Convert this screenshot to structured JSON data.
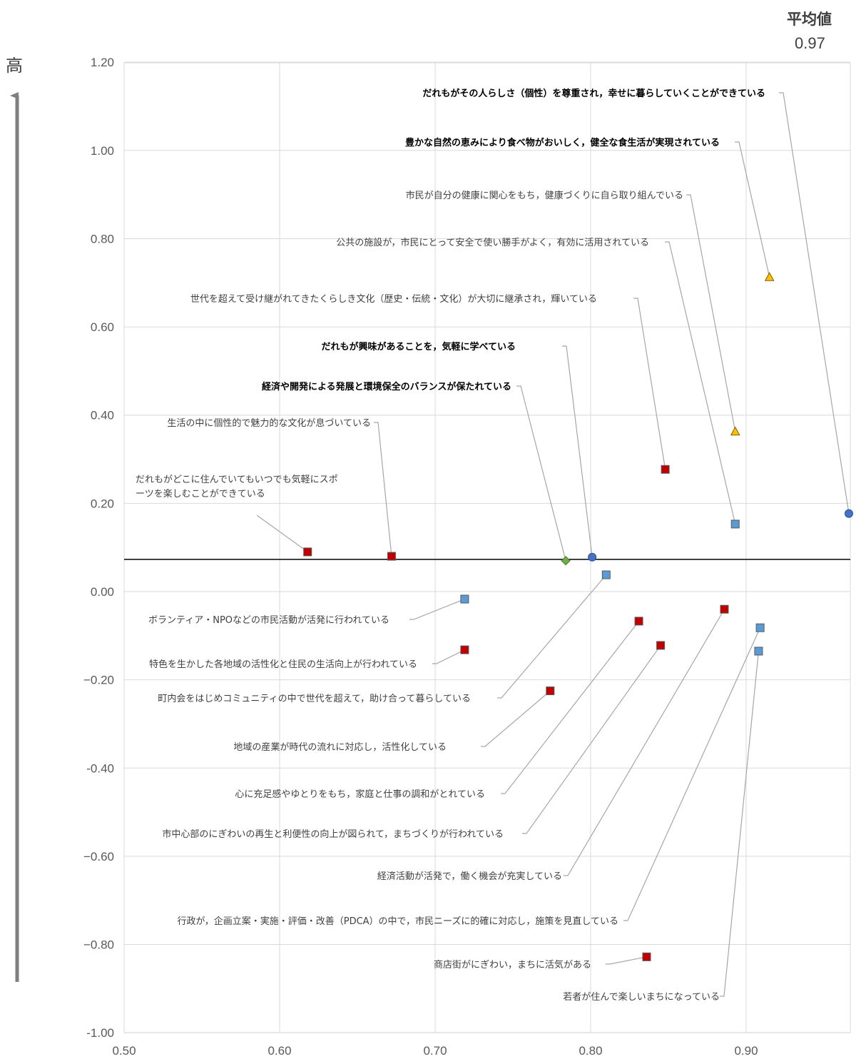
{
  "chart_data": {
    "type": "scatter",
    "title": "",
    "xlabel": "",
    "ylabel": "高",
    "xlim": [
      0.5,
      0.97
    ],
    "ylim": [
      -1.0,
      1.2
    ],
    "x_ticks": [
      "0.50",
      "0.60",
      "0.70",
      "0.80",
      "0.90"
    ],
    "y_ticks": [
      "1.20",
      "1.00",
      "0.80",
      "0.60",
      "0.40",
      "0.20",
      "0.00",
      "−0.20",
      "-0.40",
      "−0.60",
      "−0.80",
      "-1.00"
    ],
    "grid": true,
    "average": {
      "label": "平均値",
      "value_text": "0.97",
      "x": 0.97,
      "y": 0.073
    },
    "colors": {
      "circle": "#4472C4",
      "triangle": "#FFC000",
      "diamond": "#70AD47",
      "red_square": "#C00000",
      "blue_square": "#5B9BD5",
      "leader": "#A6A6A6",
      "grid": "#D9D9D9"
    },
    "points": [
      {
        "label": "だれもがその人らしさ（個性）を尊重され，幸せに暮らしていくことができている",
        "x": 0.97,
        "y": 0.177,
        "marker": "circle",
        "bold": true
      },
      {
        "label": "豊かな自然の恵みにより食べ物がおいしく，健全な食生活が実現されている",
        "x": 0.915,
        "y": 0.713,
        "marker": "triangle",
        "bold": true
      },
      {
        "label": "市民が自分の健康に関心をもち，健康づくりに自ら取り組んでいる",
        "x": 0.893,
        "y": 0.363,
        "marker": "triangle",
        "bold": false
      },
      {
        "label": "公共の施設が，市民にとって安全で使い勝手がよく，有効に活用されている",
        "x": 0.893,
        "y": 0.153,
        "marker": "blue_square",
        "bold": false
      },
      {
        "label": "世代を超えて受け継がれてきたくらしき文化（歴史・伝統・文化）が大切に継承され，輝いている",
        "x": 0.848,
        "y": 0.277,
        "marker": "red_square",
        "bold": false
      },
      {
        "label": "だれもが興味があることを，気軽に学べている",
        "x": 0.801,
        "y": 0.078,
        "marker": "circle",
        "bold": true
      },
      {
        "label": "経済や開発による発展と環境保全のバランスが保たれている",
        "x": 0.784,
        "y": 0.07,
        "marker": "diamond",
        "bold": true
      },
      {
        "label": "生活の中に個性的で魅力的な文化が息づいている",
        "x": 0.672,
        "y": 0.08,
        "marker": "red_square",
        "bold": false
      },
      {
        "label": "だれもがどこに住んでいてもいつでも気軽にスポーツを楽しむことができている",
        "x": 0.618,
        "y": 0.09,
        "marker": "red_square",
        "bold": false
      },
      {
        "label": "ボランティア・NPOなどの市民活動が活発に行われている",
        "x": 0.719,
        "y": -0.017,
        "marker": "blue_square",
        "bold": false
      },
      {
        "label": "特色を生かした各地域の活性化と住民の生活向上が行われている",
        "x": 0.719,
        "y": -0.132,
        "marker": "red_square",
        "bold": false
      },
      {
        "label": "町内会をはじめコミュニティの中で世代を超えて，助け合って暮らしている",
        "x": 0.81,
        "y": 0.038,
        "marker": "blue_square",
        "bold": false
      },
      {
        "label": "地域の産業が時代の流れに対応し，活性化している",
        "x": 0.774,
        "y": -0.225,
        "marker": "red_square",
        "bold": false
      },
      {
        "label": "心に充足感やゆとりをもち，家庭と仕事の調和がとれている",
        "x": 0.831,
        "y": -0.067,
        "marker": "red_square",
        "bold": false
      },
      {
        "label": "市中心部のにぎわいの再生と利便性の向上が図られて，まちづくりが行われている",
        "x": 0.845,
        "y": -0.122,
        "marker": "red_square",
        "bold": false
      },
      {
        "label": "経済活動が活発で，働く機会が充実している",
        "x": 0.886,
        "y": -0.04,
        "marker": "red_square",
        "bold": false
      },
      {
        "label": "行政が，企画立案・実施・評価・改善（PDCA）の中で，市民ニーズに的確に対応し，施策を見直している",
        "x": 0.909,
        "y": -0.082,
        "marker": "blue_square",
        "bold": false
      },
      {
        "label": "商店街がにぎわい，まちに活気がある",
        "x": 0.836,
        "y": -0.828,
        "marker": "red_square",
        "bold": false
      },
      {
        "label": "若者が住んで楽しいまちになっている",
        "x": 0.908,
        "y": -0.135,
        "marker": "blue_square",
        "bold": false
      }
    ]
  }
}
